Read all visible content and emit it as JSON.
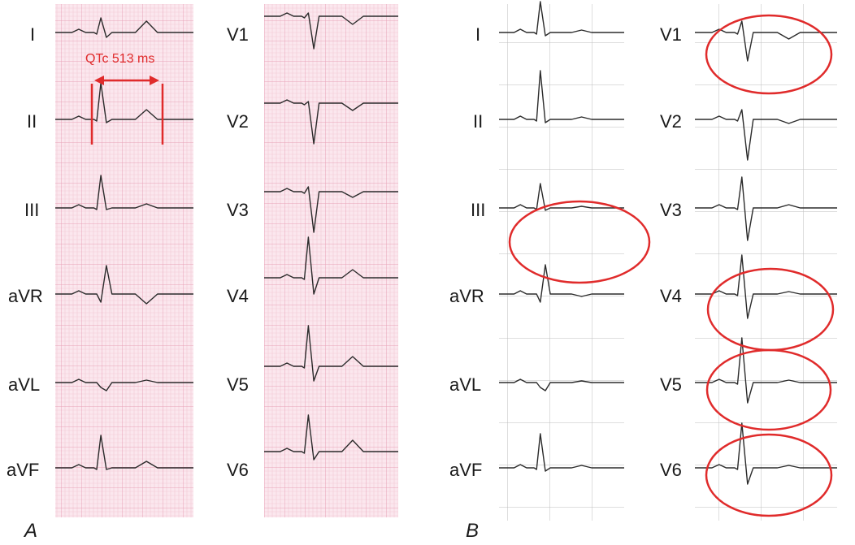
{
  "panel_a": {
    "letter": "A",
    "left_leads": [
      "I",
      "II",
      "III",
      "aVR",
      "aVL",
      "aVF"
    ],
    "right_leads": [
      "V1",
      "V2",
      "V3",
      "V4",
      "V5",
      "V6"
    ],
    "measurement": {
      "label": "QTc 513 ms"
    }
  },
  "panel_b": {
    "letter": "B",
    "left_leads": [
      "I",
      "II",
      "III",
      "aVR",
      "aVL",
      "aVF"
    ],
    "right_leads": [
      "V1",
      "V2",
      "V3",
      "V4",
      "V5",
      "V6"
    ],
    "circled_leads": [
      "III",
      "V1",
      "V4",
      "V5",
      "V6"
    ]
  },
  "colors": {
    "pink_paper": "#fbe7ee",
    "pink_grid_minor": "#f3c9d6",
    "pink_grid_major": "#e8a3b8",
    "trace": "#2b2b2b",
    "annotation_red": "#e02b2b",
    "white_grid": "#bdbdbd"
  }
}
